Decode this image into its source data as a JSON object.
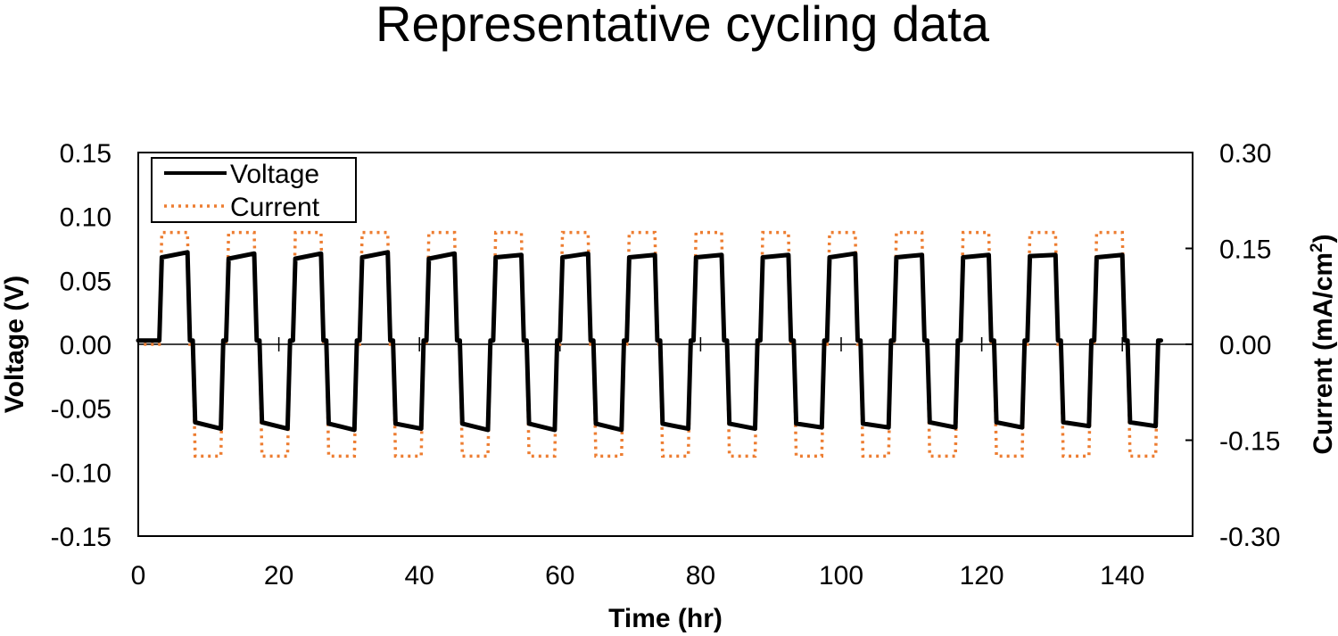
{
  "chart_data": {
    "type": "line",
    "title": "Representative cycling data",
    "xlabel": "Time (hr)",
    "ylabel": "Voltage (V)",
    "y2label_main": "Current (mA/cm",
    "y2label_sup": "2",
    "y2label_tail": ")",
    "xlim": [
      0,
      150
    ],
    "ylim": [
      -0.15,
      0.15
    ],
    "y2lim": [
      -0.3,
      0.3
    ],
    "x_ticks": [
      "0",
      "20",
      "40",
      "60",
      "80",
      "100",
      "120",
      "140"
    ],
    "x_tick_values": [
      0,
      20,
      40,
      60,
      80,
      100,
      120,
      140
    ],
    "y_ticks": [
      "0.15",
      "0.10",
      "0.05",
      "0.00",
      "-0.05",
      "-0.10",
      "-0.15"
    ],
    "y_tick_values": [
      0.15,
      0.1,
      0.05,
      0.0,
      -0.05,
      -0.1,
      -0.15
    ],
    "y2_ticks": [
      "0.30",
      "0.15",
      "0.00",
      "-0.15",
      "-0.30"
    ],
    "y2_tick_values": [
      0.3,
      0.15,
      0.0,
      -0.15,
      -0.3
    ],
    "legend_position": "top-left",
    "cycles": {
      "start": 3.0,
      "period": 9.5,
      "count": 15,
      "charge_duration": 4.0,
      "discharge_duration": 4.0,
      "voltage_charge_start": [
        0.068,
        0.067,
        0.067,
        0.068,
        0.067,
        0.068,
        0.068,
        0.068,
        0.068,
        0.068,
        0.068,
        0.068,
        0.068,
        0.069,
        0.068
      ],
      "voltage_charge_end": [
        0.072,
        0.071,
        0.071,
        0.072,
        0.071,
        0.07,
        0.071,
        0.07,
        0.07,
        0.07,
        0.071,
        0.07,
        0.07,
        0.07,
        0.07
      ],
      "voltage_discharge_start": [
        -0.061,
        -0.061,
        -0.062,
        -0.062,
        -0.062,
        -0.062,
        -0.062,
        -0.062,
        -0.062,
        -0.062,
        -0.062,
        -0.061,
        -0.061,
        -0.061,
        -0.061
      ],
      "voltage_discharge_end": [
        -0.066,
        -0.066,
        -0.067,
        -0.066,
        -0.067,
        -0.067,
        -0.067,
        -0.066,
        -0.066,
        -0.065,
        -0.065,
        -0.065,
        -0.065,
        -0.064,
        -0.064
      ]
    },
    "series": [
      {
        "name": "Voltage",
        "axis": "left",
        "color": "#000000",
        "style": "solid",
        "rest_value": 0.003
      },
      {
        "name": "Current",
        "axis": "right",
        "color": "#ED7D31",
        "style": "dotted",
        "charge_value": 0.175,
        "discharge_value": -0.175,
        "rest_value": 0.0
      }
    ],
    "end_time": 145.5
  }
}
